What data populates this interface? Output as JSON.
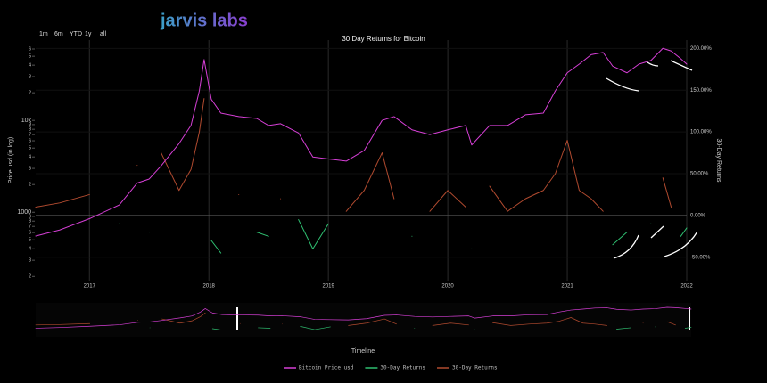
{
  "logo": "jarvis labs",
  "range_selector": [
    "1m",
    "6m",
    "YTD",
    "1y",
    "all"
  ],
  "chart_data": {
    "type": "line",
    "title": "30 Day Returns for Bitcoin",
    "y_label": "Price usd (in log)",
    "y2_label": "30-Day Returns",
    "x_label": "Timeline",
    "log_y": true,
    "grid": "x",
    "legend": "bottom",
    "x": [
      2016.55,
      2016.75,
      2017.0,
      2017.25,
      2017.4,
      2017.5,
      2017.6,
      2017.75,
      2017.85,
      2017.92,
      2017.96,
      2018.02,
      2018.1,
      2018.25,
      2018.4,
      2018.5,
      2018.6,
      2018.75,
      2018.87,
      2019.0,
      2019.15,
      2019.3,
      2019.45,
      2019.55,
      2019.7,
      2019.85,
      2020.0,
      2020.15,
      2020.2,
      2020.35,
      2020.5,
      2020.65,
      2020.8,
      2020.9,
      2021.0,
      2021.1,
      2021.2,
      2021.3,
      2021.38,
      2021.5,
      2021.6,
      2021.7,
      2021.8,
      2021.87,
      2021.95,
      2022.0
    ],
    "xlim": [
      2016.55,
      2022.0
    ],
    "xticks": [
      2017,
      2018,
      2019,
      2020,
      2021,
      2022
    ],
    "ylim": [
      180,
      75000
    ],
    "yticks": [
      {
        "value": 200,
        "label": "2"
      },
      {
        "value": 300,
        "label": "3"
      },
      {
        "value": 400,
        "label": "4"
      },
      {
        "value": 500,
        "label": "5"
      },
      {
        "value": 600,
        "label": "6"
      },
      {
        "value": 700,
        "label": "7"
      },
      {
        "value": 800,
        "label": "8"
      },
      {
        "value": 900,
        "label": "9"
      },
      1000,
      {
        "value": 2000,
        "label": "2"
      },
      {
        "value": 3000,
        "label": "3"
      },
      {
        "value": 4000,
        "label": "4"
      },
      {
        "value": 5000,
        "label": "5"
      },
      {
        "value": 6000,
        "label": "6"
      },
      {
        "value": 7000,
        "label": "7"
      },
      {
        "value": 8000,
        "label": "8"
      },
      {
        "value": 9000,
        "label": "9"
      },
      {
        "value": 10000,
        "label": "10k"
      },
      {
        "value": 20000,
        "label": "2"
      },
      {
        "value": 30000,
        "label": "3"
      },
      {
        "value": 40000,
        "label": "4"
      },
      {
        "value": 50000,
        "label": "5"
      },
      {
        "value": 60000,
        "label": "6"
      }
    ],
    "y2lim": [
      -78,
      210
    ],
    "y2ticks": [
      {
        "value": -50,
        "label": "-50.00%"
      },
      {
        "value": 0,
        "label": "0.00%"
      },
      {
        "value": 50,
        "label": "50.00%"
      },
      {
        "value": 100,
        "label": "100.00%"
      },
      {
        "value": 150,
        "label": "150.00%"
      },
      {
        "value": 200,
        "label": "200.00%"
      }
    ],
    "series": [
      {
        "name": "Bitcoin Price usd",
        "color": "#d63fd6",
        "axis": "y",
        "values": [
          550,
          640,
          850,
          1200,
          2080,
          2300,
          3200,
          5600,
          8800,
          21000,
          46000,
          17000,
          12000,
          11000,
          10500,
          8800,
          9200,
          7300,
          4000,
          3800,
          3600,
          4700,
          10000,
          11000,
          7900,
          7000,
          7900,
          8800,
          5400,
          8800,
          8800,
          11500,
          12000,
          21000,
          33000,
          41000,
          52000,
          55000,
          39000,
          33000,
          41000,
          45000,
          61000,
          57000,
          47000,
          41000
        ]
      },
      {
        "name": "30-Day Returns",
        "color": "#2fbf71",
        "axis": "y2",
        "values": [
          null,
          null,
          null,
          -10,
          null,
          -20,
          null,
          null,
          null,
          null,
          null,
          -30,
          -45,
          null,
          -20,
          -25,
          null,
          -5,
          -40,
          -10,
          null,
          null,
          null,
          null,
          -25,
          null,
          null,
          null,
          -40,
          null,
          null,
          null,
          null,
          null,
          null,
          null,
          null,
          null,
          -35,
          -20,
          null,
          -10,
          null,
          null,
          -25,
          -15
        ]
      },
      {
        "name": "30-Day Returns",
        "color": "#b04a2f",
        "axis": "y2",
        "values": [
          10,
          15,
          25,
          null,
          60,
          null,
          75,
          30,
          55,
          100,
          140,
          null,
          null,
          25,
          null,
          null,
          20,
          null,
          null,
          null,
          5,
          30,
          75,
          20,
          null,
          5,
          30,
          10,
          null,
          35,
          5,
          20,
          30,
          50,
          90,
          30,
          20,
          5,
          null,
          null,
          30,
          null,
          45,
          10,
          null,
          null
        ]
      }
    ]
  }
}
